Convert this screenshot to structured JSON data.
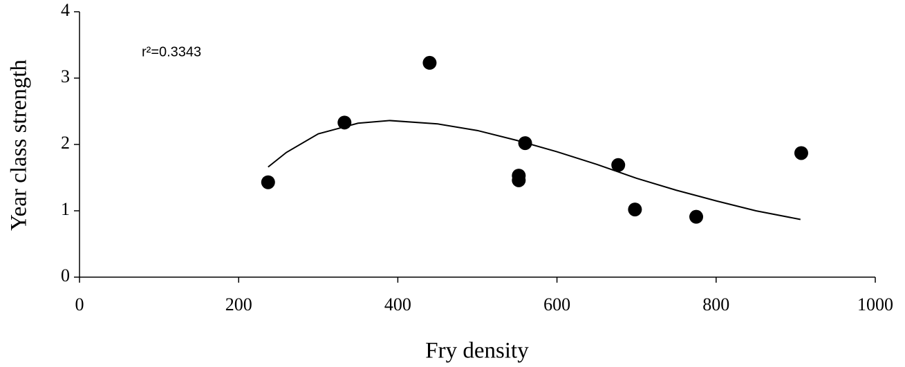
{
  "chart_data": {
    "type": "scatter",
    "x_label": "Fry density",
    "y_label": "Year class strength",
    "annotation": "r²=0.3343",
    "points": {
      "color": "#000000",
      "x": [
        237,
        333,
        440,
        552,
        552,
        560,
        677,
        698,
        775,
        907
      ],
      "y": [
        1.43,
        2.33,
        3.23,
        1.53,
        1.46,
        2.02,
        1.69,
        1.02,
        0.91,
        1.87
      ]
    },
    "fit": {
      "color": "#000000",
      "x": [
        237,
        260,
        300,
        350,
        390,
        450,
        500,
        550,
        600,
        650,
        700,
        750,
        800,
        850,
        906
      ],
      "y": [
        1.66,
        1.88,
        2.16,
        2.32,
        2.36,
        2.31,
        2.21,
        2.06,
        1.89,
        1.7,
        1.49,
        1.31,
        1.15,
        1.0,
        0.87
      ]
    },
    "xlim": [
      0,
      1000
    ],
    "xticks": [
      0,
      200,
      400,
      600,
      800,
      1000
    ],
    "ylim": [
      0,
      4
    ],
    "yticks": [
      0,
      1,
      2,
      3,
      4
    ],
    "grid": false
  }
}
